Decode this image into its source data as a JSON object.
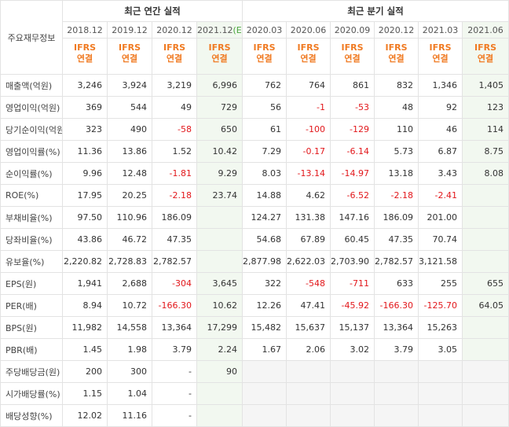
{
  "header": {
    "corner_label": "주요재무정보",
    "annual_group": "최근 연간 실적",
    "quarter_group": "최근 분기 실적",
    "ifrs_top": "IFRS",
    "ifrs_bottom": "연결",
    "periods": [
      "2018.12",
      "2019.12",
      "2020.12",
      "2021.12",
      "2020.03",
      "2020.06",
      "2020.09",
      "2020.12",
      "2021.03",
      "2021.06"
    ],
    "estimate_mark": "(E)"
  },
  "rows": [
    {
      "label": "매출액(억원)",
      "values": [
        "3,246",
        "3,924",
        "3,219",
        "6,996",
        "762",
        "764",
        "861",
        "832",
        "1,346",
        "1,405"
      ]
    },
    {
      "label": "영업이익(억원)",
      "values": [
        "369",
        "544",
        "49",
        "729",
        "56",
        "-1",
        "-53",
        "48",
        "92",
        "123"
      ]
    },
    {
      "label": "당기순이익(억원)",
      "values": [
        "323",
        "490",
        "-58",
        "650",
        "61",
        "-100",
        "-129",
        "110",
        "46",
        "114"
      ]
    },
    {
      "label": "영업이익률(%)",
      "values": [
        "11.36",
        "13.86",
        "1.52",
        "10.42",
        "7.29",
        "-0.17",
        "-6.14",
        "5.73",
        "6.87",
        "8.75"
      ]
    },
    {
      "label": "순이익률(%)",
      "values": [
        "9.96",
        "12.48",
        "-1.81",
        "9.29",
        "8.03",
        "-13.14",
        "-14.97",
        "13.18",
        "3.43",
        "8.08"
      ]
    },
    {
      "label": "ROE(%)",
      "values": [
        "17.95",
        "20.25",
        "-2.18",
        "23.74",
        "14.88",
        "4.62",
        "-6.52",
        "-2.18",
        "-2.41",
        ""
      ]
    },
    {
      "label": "부채비율(%)",
      "values": [
        "97.50",
        "110.96",
        "186.09",
        "",
        "124.27",
        "131.38",
        "147.16",
        "186.09",
        "201.00",
        ""
      ]
    },
    {
      "label": "당좌비율(%)",
      "values": [
        "43.86",
        "46.72",
        "47.35",
        "",
        "54.68",
        "67.89",
        "60.45",
        "47.35",
        "70.74",
        ""
      ]
    },
    {
      "label": "유보율(%)",
      "values": [
        "2,220.82",
        "2,728.83",
        "2,782.57",
        "",
        "2,877.98",
        "2,622.03",
        "2,703.90",
        "2,782.57",
        "3,121.58",
        ""
      ]
    },
    {
      "label": "EPS(원)",
      "values": [
        "1,941",
        "2,688",
        "-304",
        "3,645",
        "322",
        "-548",
        "-711",
        "633",
        "255",
        "655"
      ]
    },
    {
      "label": "PER(배)",
      "values": [
        "8.94",
        "10.72",
        "-166.30",
        "10.62",
        "12.26",
        "47.41",
        "-45.92",
        "-166.30",
        "-125.70",
        "64.05"
      ]
    },
    {
      "label": "BPS(원)",
      "values": [
        "11,982",
        "14,558",
        "13,364",
        "17,299",
        "15,482",
        "15,637",
        "15,137",
        "13,364",
        "15,263",
        ""
      ]
    },
    {
      "label": "PBR(배)",
      "values": [
        "1.45",
        "1.98",
        "3.79",
        "2.24",
        "1.67",
        "2.06",
        "3.02",
        "3.79",
        "3.05",
        ""
      ]
    },
    {
      "label": "주당배당금(원)",
      "values": [
        "200",
        "300",
        "-",
        "90",
        "",
        "",
        "",
        "",
        "",
        ""
      ]
    },
    {
      "label": "시가배당률(%)",
      "values": [
        "1.15",
        "1.04",
        "-",
        "",
        "",
        "",
        "",
        "",
        "",
        ""
      ]
    },
    {
      "label": "배당성향(%)",
      "values": [
        "12.02",
        "11.16",
        "-",
        "",
        "",
        "",
        "",
        "",
        "",
        ""
      ]
    }
  ],
  "colors": {
    "negative": "#e2171b",
    "ifrs": "#f07a22",
    "estimate_bg": "#f2f8f0",
    "estimate_mark": "#4aa53d",
    "empty_bg": "#f5f5f5"
  }
}
